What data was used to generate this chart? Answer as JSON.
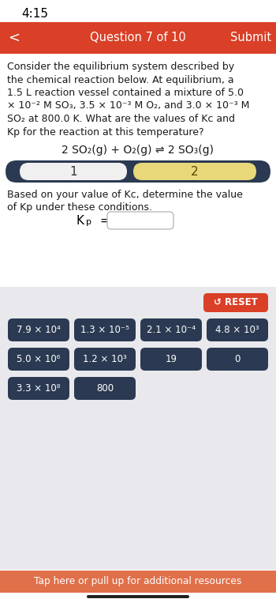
{
  "time": "4:15",
  "nav_bar_color": "#D94027",
  "nav_text": "Question 7 of 10",
  "nav_submit": "Submit",
  "question_lines": [
    "Consider the equilibrium system described by",
    "the chemical reaction below. At equilibrium, a",
    "1.5 L reaction vessel contained a mixture of 5.0",
    "× 10⁻² M SO₃, 3.5 × 10⁻³ M O₂, and 3.0 × 10⁻³ M",
    "SO₂ at 800.0 K. What are the values of Kc and",
    "Kp for the reaction at this temperature?"
  ],
  "reaction": "2 SO₂(g) + O₂(g) ⇌ 2 SO₃(g)",
  "step_bar_bg": "#2b3a52",
  "step1_bg": "#f0f0f0",
  "step2_bg": "#e8d87a",
  "sub_question_line1": "Based on your value of Kc, determine the value",
  "sub_question_line2": "of Kp under these conditions.",
  "kp_label": "K",
  "kp_sub": "p",
  "reset_color": "#D94027",
  "reset_text": "↺ RESET",
  "button_color": "#2b3a52",
  "button_text_color": "#ffffff",
  "buttons_row1": [
    "7.9 × 10⁴",
    "1.3 × 10⁻⁵",
    "2.1 × 10⁻⁴",
    "4.8 × 10³"
  ],
  "buttons_row2": [
    "5.0 × 10⁶",
    "1.2 × 10³",
    "19",
    "0"
  ],
  "buttons_row3": [
    "3.3 × 10⁸",
    "800"
  ],
  "bottom_bar_color": "#e0704a",
  "bottom_bar_text": "Tap here or pull up for additional resources",
  "bg_light": "#e9e9ed",
  "white": "#ffffff",
  "text_dark": "#1a1a1a"
}
